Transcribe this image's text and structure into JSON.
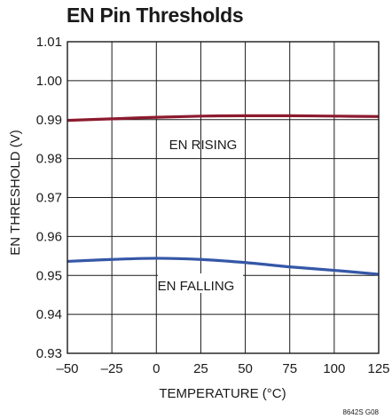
{
  "chart_data": {
    "type": "line",
    "title": "EN Pin Thresholds",
    "xlabel": "TEMPERATURE (°C)",
    "ylabel": "EN THRESHOLD (V)",
    "xlim": [
      -50,
      125
    ],
    "ylim": [
      0.93,
      1.01
    ],
    "x_ticks": [
      -50,
      -25,
      0,
      25,
      50,
      75,
      100,
      125
    ],
    "x_tick_labels": [
      "–50",
      "–25",
      "0",
      "25",
      "50",
      "75",
      "100",
      "125"
    ],
    "y_ticks": [
      0.93,
      0.94,
      0.95,
      0.96,
      0.97,
      0.98,
      0.99,
      1.0,
      1.01
    ],
    "y_tick_labels": [
      "0.93",
      "0.94",
      "0.95",
      "0.96",
      "0.97",
      "0.98",
      "0.99",
      "1.00",
      "1.01"
    ],
    "grid": true,
    "series": [
      {
        "name": "EN RISING",
        "color": "#8c1a2e",
        "x": [
          -50,
          -25,
          0,
          25,
          50,
          75,
          100,
          125
        ],
        "values": [
          0.9898,
          0.9902,
          0.9906,
          0.9909,
          0.991,
          0.991,
          0.9909,
          0.9908
        ]
      },
      {
        "name": "EN FALLING",
        "color": "#3557a7",
        "x": [
          -50,
          -25,
          0,
          25,
          50,
          75,
          100,
          125
        ],
        "values": [
          0.9536,
          0.9541,
          0.9544,
          0.9541,
          0.9533,
          0.9522,
          0.9513,
          0.9503
        ]
      }
    ],
    "annotations": [
      "EN RISING",
      "EN FALLING"
    ],
    "figure_code": "8642S G08"
  }
}
